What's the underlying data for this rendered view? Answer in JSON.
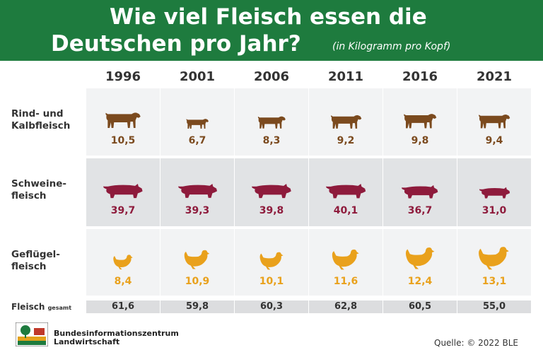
{
  "chart_data": {
    "type": "pictogram",
    "title": [
      "Wie viel Fleisch essen die",
      "Deutschen pro Jahr?"
    ],
    "subtitle": "(in Kilogramm pro Kopf)",
    "categories": [
      "1996",
      "2001",
      "2006",
      "2011",
      "2016",
      "2021"
    ],
    "series": [
      {
        "name": [
          "Rind- und",
          "Kalbfleisch"
        ],
        "icon": "cow",
        "color": "#7b4a1e",
        "values": [
          10.5,
          6.7,
          8.3,
          9.2,
          9.8,
          9.4
        ],
        "value_labels": [
          "10,5",
          "6,7",
          "8,3",
          "9,2",
          "9,8",
          "9,4"
        ]
      },
      {
        "name": [
          "Schweine-",
          "fleisch"
        ],
        "icon": "pig",
        "color": "#8e1b3c",
        "values": [
          39.7,
          39.3,
          39.8,
          40.1,
          36.7,
          31.0
        ],
        "value_labels": [
          "39,7",
          "39,3",
          "39,8",
          "40,1",
          "36,7",
          "31,0"
        ]
      },
      {
        "name": [
          "Geflügel-",
          "fleisch"
        ],
        "icon": "chicken",
        "color": "#e9a11c",
        "values": [
          8.4,
          10.9,
          10.1,
          11.6,
          12.4,
          13.1
        ],
        "value_labels": [
          "8,4",
          "10,9",
          "10,1",
          "11,6",
          "12,4",
          "13,1"
        ]
      }
    ],
    "total": {
      "name": [
        "Fleisch",
        "gesamt"
      ],
      "values": [
        61.6,
        59.8,
        60.3,
        62.8,
        60.5,
        55.0
      ],
      "value_labels": [
        "61,6",
        "59,8",
        "60,3",
        "62,8",
        "60,5",
        "55,0"
      ]
    },
    "footer": {
      "org": [
        "Bundesinformationszentrum",
        "Landwirtschaft"
      ],
      "source": "Quelle: © 2022 BLE"
    }
  }
}
